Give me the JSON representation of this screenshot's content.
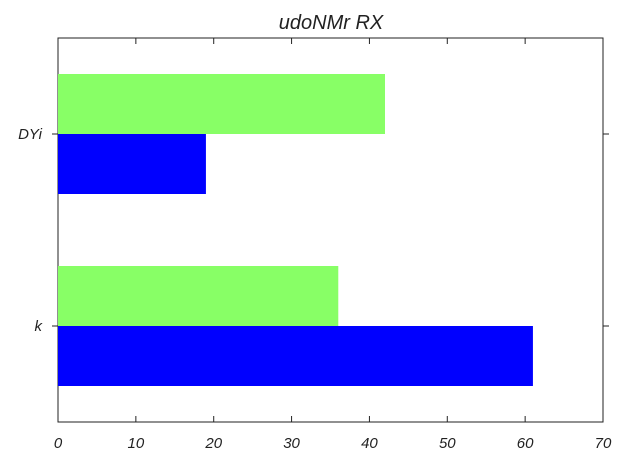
{
  "chart_data": {
    "type": "bar",
    "orientation": "horizontal",
    "title": "udoNMr RX",
    "xlabel": "",
    "ylabel": "",
    "categories": [
      "k",
      "DYi"
    ],
    "series": [
      {
        "values": [
          61,
          19
        ],
        "color": "#0000ff"
      },
      {
        "values": [
          36,
          42
        ],
        "color": "#88ff66"
      }
    ],
    "xlim": [
      0,
      70
    ],
    "xticks": [
      0,
      10,
      20,
      30,
      40,
      50,
      60,
      70
    ],
    "grid": false,
    "legend": "none"
  }
}
